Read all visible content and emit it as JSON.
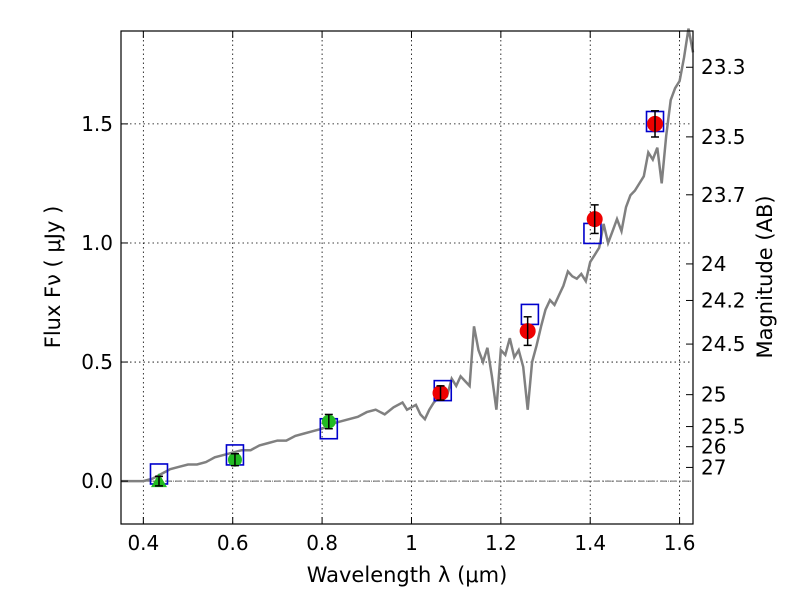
{
  "chart_data": {
    "type": "scatter",
    "xlabel": "Wavelength  λ (μm)",
    "ylabel": "Flux  Fν  ( μJy )",
    "y2label": "Magnitude (AB)",
    "xlim": [
      0.35,
      1.63
    ],
    "ylim": [
      -0.18,
      1.89
    ],
    "grid": true,
    "zero_line": 0,
    "x_ticks": [
      0.4,
      0.6,
      0.8,
      1.0,
      1.2,
      1.4,
      1.6
    ],
    "x_tick_labels": [
      "0.4",
      "0.6",
      "0.8",
      "1",
      "1.2",
      "1.4",
      "1.6"
    ],
    "y_ticks": [
      0.0,
      0.5,
      1.0,
      1.5
    ],
    "y_tick_labels": [
      "0.0",
      "0.5",
      "1.0",
      "1.5"
    ],
    "mag_ticks": [
      {
        "label": "23.3",
        "mag": 23.3
      },
      {
        "label": "23.5",
        "mag": 23.5
      },
      {
        "label": "23.7",
        "mag": 23.7
      },
      {
        "label": "24",
        "mag": 24.0
      },
      {
        "label": "24.2",
        "mag": 24.2
      },
      {
        "label": "24.5",
        "mag": 24.5
      },
      {
        "label": "25",
        "mag": 25.0
      },
      {
        "label": "25.5",
        "mag": 25.5
      },
      {
        "label": "26",
        "mag": 26.0
      },
      {
        "label": "27",
        "mag": 27.0
      }
    ],
    "colors": {
      "model": "#808080",
      "model_photometry": "#0000cc",
      "red_points": "#ee0000",
      "green_points": "#22bb22",
      "error_bars": "#000000",
      "zero_line": "#666666"
    },
    "series": [
      {
        "kind": "model-spectrum",
        "x": [
          0.35,
          0.38,
          0.4,
          0.42,
          0.43,
          0.44,
          0.45,
          0.46,
          0.48,
          0.5,
          0.52,
          0.54,
          0.55,
          0.56,
          0.58,
          0.6,
          0.62,
          0.64,
          0.66,
          0.68,
          0.7,
          0.72,
          0.74,
          0.76,
          0.78,
          0.8,
          0.82,
          0.84,
          0.86,
          0.88,
          0.9,
          0.92,
          0.94,
          0.96,
          0.98,
          0.99,
          1.0,
          1.01,
          1.02,
          1.03,
          1.04,
          1.05,
          1.06,
          1.07,
          1.08,
          1.09,
          1.1,
          1.11,
          1.12,
          1.13,
          1.14,
          1.15,
          1.16,
          1.17,
          1.18,
          1.19,
          1.2,
          1.21,
          1.22,
          1.23,
          1.24,
          1.25,
          1.26,
          1.27,
          1.28,
          1.29,
          1.3,
          1.31,
          1.32,
          1.33,
          1.34,
          1.35,
          1.36,
          1.37,
          1.38,
          1.39,
          1.4,
          1.41,
          1.42,
          1.43,
          1.44,
          1.45,
          1.46,
          1.47,
          1.48,
          1.49,
          1.5,
          1.51,
          1.52,
          1.53,
          1.54,
          1.55,
          1.56,
          1.57,
          1.58,
          1.59,
          1.6,
          1.61,
          1.62,
          1.63
        ],
        "y": [
          0.0,
          0.0,
          0.0,
          0.01,
          0.02,
          0.03,
          0.04,
          0.05,
          0.06,
          0.07,
          0.07,
          0.08,
          0.09,
          0.1,
          0.11,
          0.12,
          0.13,
          0.13,
          0.15,
          0.16,
          0.17,
          0.17,
          0.19,
          0.2,
          0.21,
          0.22,
          0.24,
          0.25,
          0.26,
          0.27,
          0.29,
          0.3,
          0.28,
          0.31,
          0.33,
          0.3,
          0.31,
          0.32,
          0.28,
          0.26,
          0.3,
          0.33,
          0.35,
          0.38,
          0.36,
          0.43,
          0.4,
          0.44,
          0.42,
          0.4,
          0.65,
          0.55,
          0.5,
          0.56,
          0.44,
          0.3,
          0.55,
          0.53,
          0.6,
          0.52,
          0.55,
          0.48,
          0.3,
          0.5,
          0.57,
          0.65,
          0.72,
          0.76,
          0.74,
          0.78,
          0.82,
          0.88,
          0.86,
          0.85,
          0.87,
          0.84,
          0.92,
          0.95,
          0.98,
          1.08,
          1.0,
          1.05,
          1.1,
          1.05,
          1.15,
          1.2,
          1.22,
          1.25,
          1.28,
          1.38,
          1.35,
          1.4,
          1.25,
          1.45,
          1.6,
          1.65,
          1.68,
          1.78,
          1.9,
          1.8
        ]
      },
      {
        "kind": "model-photometry",
        "points": [
          {
            "x": 0.435,
            "y": 0.03
          },
          {
            "x": 0.605,
            "y": 0.11
          },
          {
            "x": 0.815,
            "y": 0.22
          },
          {
            "x": 1.07,
            "y": 0.38
          },
          {
            "x": 1.265,
            "y": 0.7
          },
          {
            "x": 1.405,
            "y": 1.04
          },
          {
            "x": 1.545,
            "y": 1.51
          }
        ]
      },
      {
        "kind": "observed-red",
        "points": [
          {
            "x": 1.065,
            "y": 0.37,
            "err": 0.03
          },
          {
            "x": 1.26,
            "y": 0.63,
            "err": 0.06
          },
          {
            "x": 1.41,
            "y": 1.1,
            "err": 0.06
          },
          {
            "x": 1.545,
            "y": 1.5,
            "err": 0.055
          }
        ]
      },
      {
        "kind": "observed-green",
        "points": [
          {
            "x": 0.435,
            "y": 0.0,
            "err": 0.02,
            "marker": "triangle"
          },
          {
            "x": 0.605,
            "y": 0.09,
            "err": 0.025,
            "marker": "circle"
          },
          {
            "x": 0.815,
            "y": 0.25,
            "err": 0.03,
            "marker": "circle"
          }
        ]
      }
    ]
  }
}
